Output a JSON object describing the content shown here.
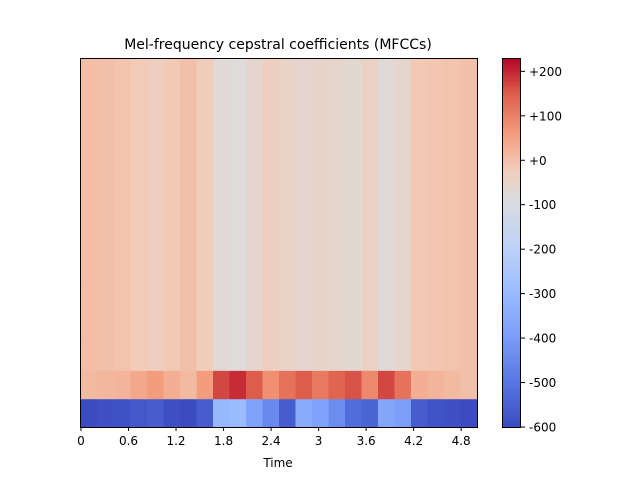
{
  "chart_data": {
    "type": "heatmap",
    "title": "Mel-frequency cepstral coefficients (MFCCs)",
    "xlabel": "Time",
    "ylabel": "",
    "x_range": [
      0,
      5.0
    ],
    "x_ticks": [
      "0",
      "0.6",
      "1.2",
      "1.8",
      "2.4",
      "3",
      "3.6",
      "4.2",
      "4.8"
    ],
    "x_tick_values": [
      0,
      0.6,
      1.2,
      1.8,
      2.4,
      3.0,
      3.6,
      4.2,
      4.8
    ],
    "n_coefficients": 13,
    "time_frames": 24,
    "colormap": "coolwarm",
    "colorbar": {
      "range": [
        -600,
        230
      ],
      "ticks": [
        "+200",
        "+100",
        "+0",
        "-100",
        "-200",
        "-300",
        "-400",
        "-500",
        "-600"
      ],
      "tick_values": [
        200,
        100,
        0,
        -100,
        -200,
        -300,
        -400,
        -500,
        -600
      ]
    },
    "coef0_values": [
      -600,
      -590,
      -585,
      -570,
      -560,
      -590,
      -600,
      -560,
      -310,
      -300,
      -380,
      -450,
      -560,
      -350,
      -380,
      -440,
      -520,
      -540,
      -370,
      -390,
      -560,
      -580,
      -590,
      -600
    ],
    "coef1_values": [
      10,
      15,
      20,
      40,
      60,
      30,
      10,
      60,
      170,
      195,
      150,
      80,
      120,
      150,
      110,
      140,
      160,
      90,
      170,
      120,
      30,
      20,
      10,
      0
    ],
    "higher_coef_values": [
      5,
      0,
      -5,
      -20,
      -30,
      -15,
      0,
      -25,
      -70,
      -80,
      -60,
      -30,
      -45,
      -60,
      -50,
      -55,
      -65,
      -40,
      -75,
      -55,
      -15,
      -10,
      -5,
      0
    ],
    "grid": false,
    "legend": "none"
  }
}
